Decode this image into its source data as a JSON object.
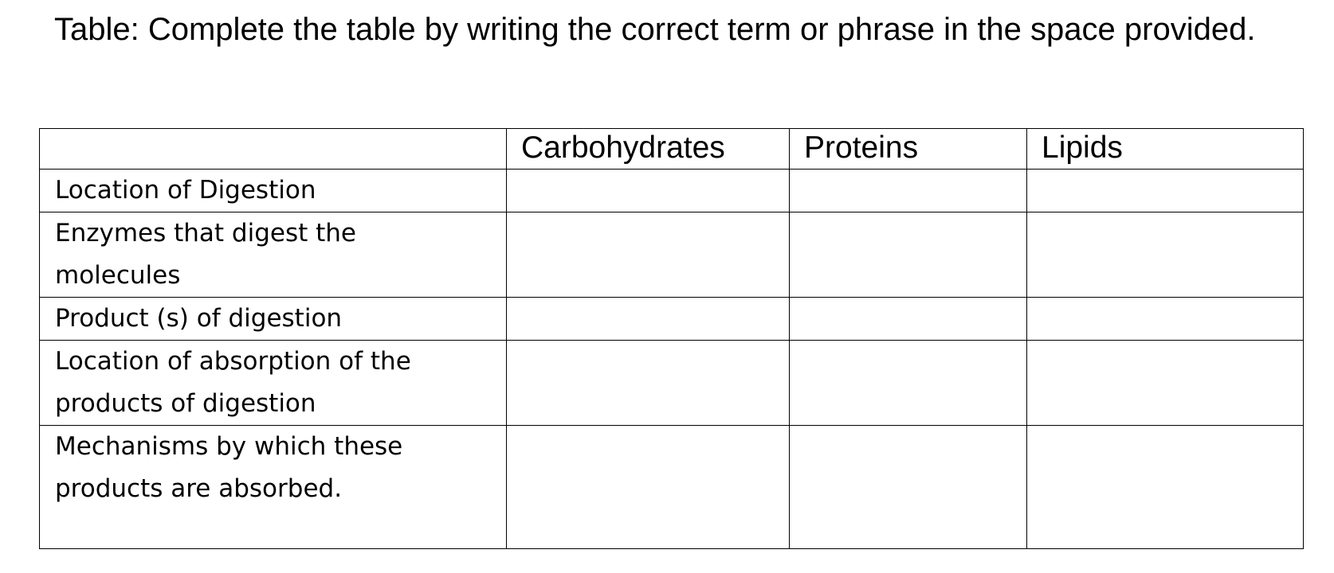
{
  "title": "Table: Complete the table by writing the correct term or phrase in the space provided.",
  "table": {
    "columns": [
      "",
      "Carbohydrates",
      "Proteins",
      "Lipids"
    ],
    "rows": [
      {
        "label": "Location of Digestion",
        "cells": [
          "",
          "",
          ""
        ]
      },
      {
        "label": "Enzymes that digest the molecules",
        "cells": [
          "",
          "",
          ""
        ]
      },
      {
        "label": "Product (s) of digestion",
        "cells": [
          "",
          "",
          ""
        ]
      },
      {
        "label": "Location of absorption of the products of digestion",
        "cells": [
          "",
          "",
          ""
        ]
      },
      {
        "label": "Mechanisms by which these products are absorbed.",
        "cells": [
          "",
          "",
          ""
        ]
      }
    ]
  }
}
